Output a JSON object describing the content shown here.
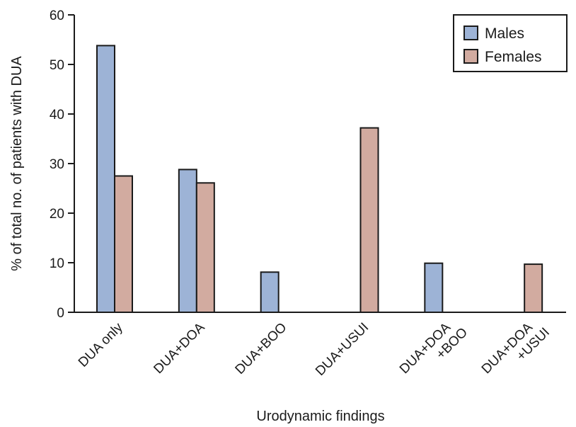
{
  "chart_data": {
    "type": "bar",
    "title": "",
    "xlabel": "Urodynamic findings",
    "ylabel": "% of total no. of patients with DUA",
    "ylim": [
      0,
      60
    ],
    "yticks": [
      0,
      10,
      20,
      30,
      40,
      50,
      60
    ],
    "categories": [
      [
        "DUA only"
      ],
      [
        "DUA+DOA"
      ],
      [
        "DUA+BOO"
      ],
      [
        "DUA+USUI"
      ],
      [
        "DUA+DOA",
        "+BOO"
      ],
      [
        "DUA+DOA",
        "+USUI"
      ]
    ],
    "series": [
      {
        "name": "Males",
        "color": "#9db3d6",
        "values": [
          53.8,
          28.8,
          8.1,
          0,
          9.9,
          0
        ]
      },
      {
        "name": "Females",
        "color": "#d2aba0",
        "values": [
          27.5,
          26.1,
          0,
          37.2,
          0,
          9.7
        ]
      }
    ],
    "legend": "top-right",
    "grid": false
  }
}
